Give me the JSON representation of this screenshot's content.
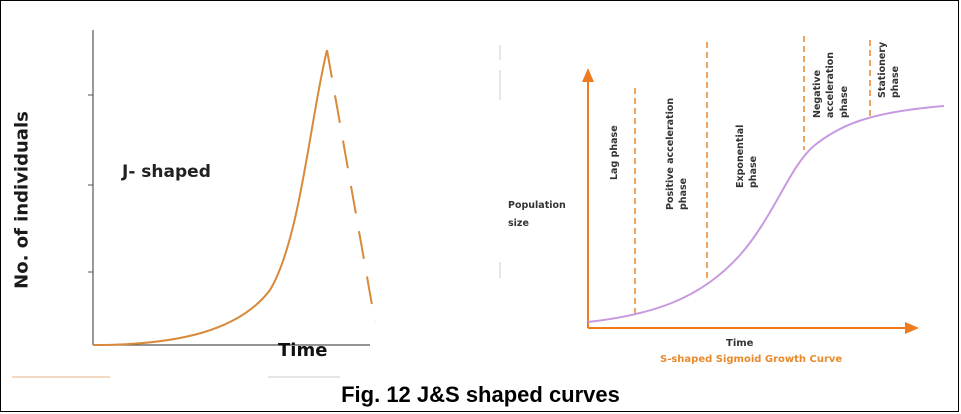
{
  "caption": "Fig. 12 J&S shaped curves",
  "j_curve": {
    "ylabel": "No. of individuals",
    "xlabel": "Time",
    "name": "J- shaped",
    "color": "#d9893a"
  },
  "s_curve": {
    "ylabel_line1": "Population",
    "ylabel_line2": "size",
    "xlabel": "Time",
    "title": "S-shaped Sigmoid Growth Curve",
    "axis_color": "#f07a1e",
    "curve_color": "#c79ae0",
    "phases": [
      {
        "label": "Lag phase"
      },
      {
        "label": "Positive acceleration\nphase"
      },
      {
        "label": "Exponential\nphase"
      },
      {
        "label": "Negative\nacceleration\nphase"
      },
      {
        "label": "Stationery\nphase"
      }
    ]
  }
}
